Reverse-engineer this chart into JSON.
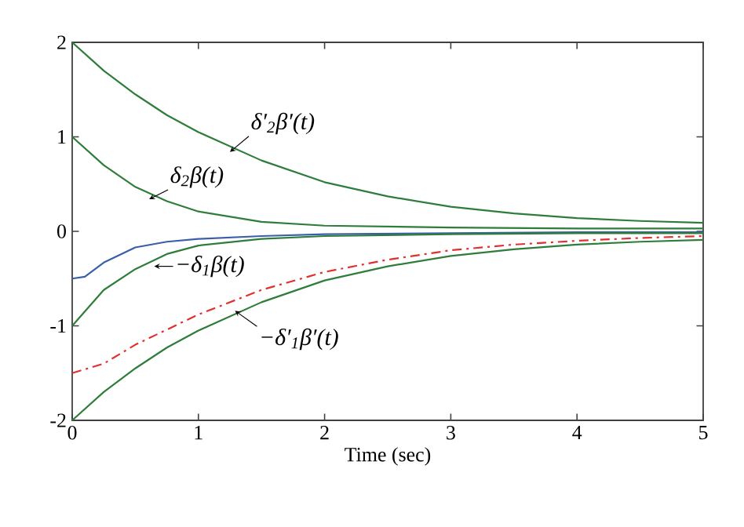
{
  "chart_data": {
    "type": "line",
    "xlabel": "Time (sec)",
    "xlim": [
      0,
      5
    ],
    "ylim": [
      -2,
      2
    ],
    "xticks": [
      0,
      1,
      2,
      3,
      4,
      5
    ],
    "yticks": [
      -2,
      -1,
      0,
      1,
      2
    ],
    "grid": false,
    "legend": false,
    "marker": "none",
    "series": [
      {
        "color": "#2e7d3a",
        "line_style": "solid",
        "x": [
          0,
          0.25,
          0.5,
          0.75,
          1,
          1.5,
          2,
          2.5,
          3,
          3.5,
          4,
          4.5,
          5
        ],
        "values": [
          2,
          1.7,
          1.45,
          1.23,
          1.05,
          0.75,
          0.52,
          0.37,
          0.26,
          0.19,
          0.14,
          0.11,
          0.09
        ]
      },
      {
        "color": "#2e7d3a",
        "line_style": "solid",
        "x": [
          0,
          0.25,
          0.5,
          0.75,
          1,
          1.5,
          2,
          3,
          4,
          5
        ],
        "values": [
          1,
          0.7,
          0.47,
          0.32,
          0.21,
          0.1,
          0.06,
          0.04,
          0.03,
          0.03
        ]
      },
      {
        "color": "#3a5fa8",
        "line_style": "solid",
        "x": [
          0,
          0.1,
          0.25,
          0.5,
          0.75,
          1,
          1.5,
          2,
          3,
          4,
          5
        ],
        "values": [
          -0.5,
          -0.48,
          -0.33,
          -0.17,
          -0.11,
          -0.08,
          -0.05,
          -0.03,
          -0.02,
          -0.01,
          -0.01
        ]
      },
      {
        "color": "#2e7d3a",
        "line_style": "solid",
        "x": [
          0,
          0.25,
          0.5,
          0.75,
          1,
          1.5,
          2,
          3,
          4,
          5
        ],
        "values": [
          -1,
          -0.62,
          -0.4,
          -0.24,
          -0.15,
          -0.08,
          -0.05,
          -0.03,
          -0.02,
          -0.02
        ]
      },
      {
        "color": "#e03030",
        "line_style": "dashdot",
        "x": [
          0,
          0.25,
          0.5,
          0.75,
          1,
          1.5,
          2,
          2.5,
          3,
          3.5,
          4,
          4.5,
          5
        ],
        "values": [
          -1.5,
          -1.4,
          -1.2,
          -1.04,
          -0.88,
          -0.62,
          -0.43,
          -0.3,
          -0.2,
          -0.14,
          -0.1,
          -0.07,
          -0.05
        ]
      },
      {
        "color": "#2e7d3a",
        "line_style": "solid",
        "x": [
          0,
          0.25,
          0.5,
          0.75,
          1,
          1.5,
          2,
          2.5,
          3,
          3.5,
          4,
          4.5,
          5
        ],
        "values": [
          -2,
          -1.7,
          -1.45,
          -1.23,
          -1.05,
          -0.75,
          -0.52,
          -0.37,
          -0.26,
          -0.19,
          -0.14,
          -0.11,
          -0.09
        ]
      }
    ],
    "annotations": [
      {
        "text": "δ′$_{2}$β′(t)",
        "x": 1.25,
        "y": 0.84
      },
      {
        "text": "δ$_{2}$β(t)",
        "x": 0.61,
        "y": 0.34
      },
      {
        "text": "−δ$_{1}$β(t)",
        "x": 0.65,
        "y": -0.37
      },
      {
        "text": "−δ′$_{1}$β′(t)",
        "x": 1.29,
        "y": -0.84
      }
    ]
  }
}
